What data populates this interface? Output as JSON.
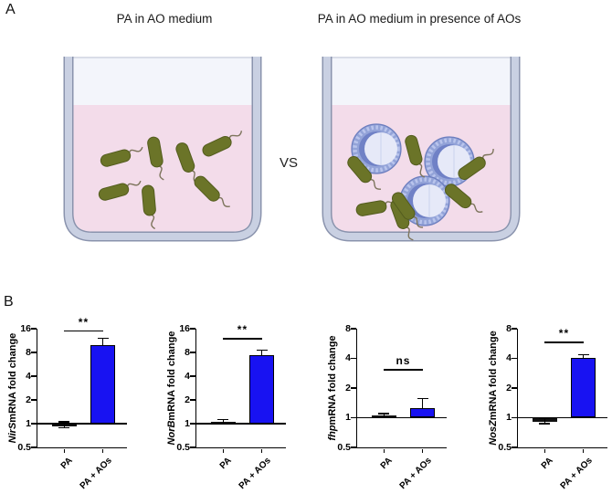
{
  "figure": {
    "panel_a": {
      "label": "A",
      "left_beaker_title": "PA in AO medium",
      "right_beaker_title": "PA in AO medium in presence of AOs",
      "vs_label": "VS",
      "left_beaker_description": "Planktonic rod-shaped PA bacteria with flagella suspended in pink AO medium",
      "right_beaker_description": "PA bacteria attached to spherical AOs plus free swimming cells in pink AO medium",
      "colors": {
        "liquid_pink": "#f3dcea",
        "headspace": "#f3f5fb",
        "beaker_wall": "#c9d0e2",
        "wall_outline": "#8a93ad",
        "bacterium_green": "#6b7428",
        "bacterium_outline": "#535c1e",
        "ao_outer_ring": "#93a3d8",
        "ao_inner": "#e6e9f8"
      }
    },
    "panel_b": {
      "label": "B",
      "bar_blue": "#1812f2"
    }
  },
  "chart_data": [
    {
      "type": "bar",
      "gene": "NirS",
      "ylabel_rest": " mRNA fold change",
      "ylabel": "NirS mRNA fold change",
      "categories": [
        "PA",
        "PA + AOs"
      ],
      "values": [
        0.97,
        10.0
      ],
      "errors": [
        0.08,
        2.1
      ],
      "yticks": [
        16,
        8,
        4,
        2,
        1,
        0.5
      ],
      "ylim": [
        0.5,
        16
      ],
      "scale": "log2",
      "baseline": 1,
      "bar_colors": [
        "#111111",
        "#1812f2"
      ],
      "significance": "**",
      "sig_y": 15.3,
      "grid": false
    },
    {
      "type": "bar",
      "gene": "NorB",
      "ylabel_rest": " mRNA fold change",
      "ylabel": "NorB mRNA fold change",
      "categories": [
        "PA",
        "PA + AOs"
      ],
      "values": [
        1.05,
        7.3
      ],
      "errors": [
        0.07,
        1.2
      ],
      "yticks": [
        16,
        8,
        4,
        2,
        1,
        0.5
      ],
      "ylim": [
        0.5,
        16
      ],
      "scale": "log2",
      "baseline": 1,
      "bar_colors": [
        "#111111",
        "#1812f2"
      ],
      "significance": "**",
      "sig_y": 12.2,
      "grid": false
    },
    {
      "type": "bar",
      "gene": "fhp",
      "ylabel_rest": " mRNA fold change",
      "ylabel": "fhp mRNA fold change",
      "categories": [
        "PA",
        "PA + AOs"
      ],
      "values": [
        1.05,
        1.26
      ],
      "errors": [
        0.05,
        0.3
      ],
      "yticks": [
        8,
        4,
        2,
        1,
        0.5
      ],
      "ylim": [
        0.5,
        8
      ],
      "scale": "log2",
      "baseline": 1,
      "bar_colors": [
        "#111111",
        "#1812f2"
      ],
      "significance": "ns",
      "sig_y": 3.1,
      "grid": false
    },
    {
      "type": "bar",
      "gene": "NosZ",
      "ylabel_rest": " mRNA fold change",
      "ylabel": "NosZ mRNA fold change",
      "categories": [
        "PA",
        "PA + AOs"
      ],
      "values": [
        0.93,
        4.05
      ],
      "errors": [
        0.06,
        0.28
      ],
      "yticks": [
        8,
        4,
        2,
        1,
        0.5
      ],
      "ylim": [
        0.5,
        8
      ],
      "scale": "log2",
      "baseline": 1,
      "bar_colors": [
        "#111111",
        "#1812f2"
      ],
      "significance": "**",
      "sig_y": 5.9,
      "grid": false
    }
  ]
}
